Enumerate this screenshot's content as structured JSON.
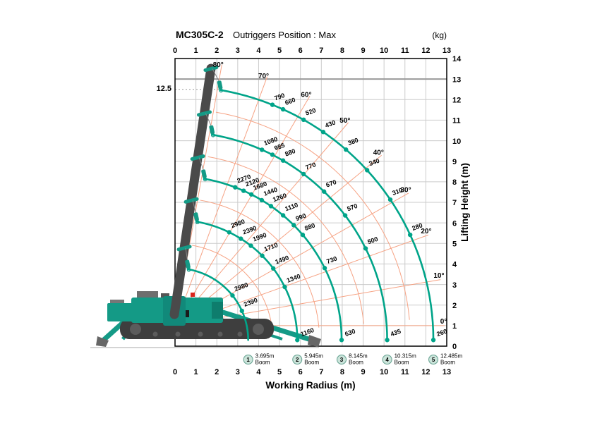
{
  "header": {
    "model": "MC305C-2",
    "subtitle": "Outriggers Position : Max",
    "unit": "(kg)"
  },
  "axes": {
    "x_label": "Working Radius (m)",
    "y_label": "Lifting Height (m)",
    "x_ticks": [
      0,
      1,
      2,
      3,
      4,
      5,
      6,
      7,
      8,
      9,
      10,
      11,
      12,
      13
    ],
    "y_ticks": [
      0,
      1,
      2,
      3,
      4,
      5,
      6,
      7,
      8,
      9,
      10,
      11,
      12,
      13,
      14
    ],
    "x_max": 13,
    "y_max": 14,
    "heavy_gridline_height": 13
  },
  "height_marker": {
    "label": "12.5",
    "height_m": 12.5,
    "extent_m": 2.1
  },
  "chart_data": {
    "type": "line",
    "title": "MC305C-2 Outriggers Position : Max",
    "units": "kg",
    "xlabel": "Working Radius (m)",
    "ylabel": "Lifting Height (m)",
    "xlim": [
      0,
      13
    ],
    "ylim": [
      0,
      14
    ],
    "grid": true,
    "angle_origin": {
      "radius_m": 0,
      "height_m": 1.0
    },
    "arc_center_height_m": 0.3,
    "angle_lines_deg": [
      0,
      10,
      20,
      30,
      40,
      50,
      60,
      70,
      80
    ],
    "intermediate_arc_radii_m": [
      4.68,
      6.91,
      9.06,
      11.26
    ],
    "booms": [
      {
        "num": "1",
        "length_label": "3.695m",
        "sub_label": "Boom",
        "reach_m": 3.5,
        "points": [
          {
            "r": 2.75,
            "load": 2980
          },
          {
            "r": 3.2,
            "load": 2390
          }
        ],
        "end_load": null
      },
      {
        "num": "2",
        "length_label": "5.945m",
        "sub_label": "Boom",
        "reach_m": 5.85,
        "points": [
          {
            "r": 2.59,
            "load": 2980
          },
          {
            "r": 3.15,
            "load": 2390
          },
          {
            "r": 3.63,
            "load": 1990
          },
          {
            "r": 4.17,
            "load": 1710
          },
          {
            "r": 4.7,
            "load": 1490
          },
          {
            "r": 5.25,
            "load": 1340
          }
        ],
        "end_load": 1160
      },
      {
        "num": "3",
        "length_label": "8.145m",
        "sub_label": "Boom",
        "reach_m": 7.97,
        "points": [
          {
            "r": 2.88,
            "load": 2270
          },
          {
            "r": 3.28,
            "load": 2120
          },
          {
            "r": 3.65,
            "load": 1680
          },
          {
            "r": 4.15,
            "load": 1440
          },
          {
            "r": 4.59,
            "load": 1260
          },
          {
            "r": 5.17,
            "load": 1110
          },
          {
            "r": 5.68,
            "load": 990
          },
          {
            "r": 6.11,
            "load": 880
          },
          {
            "r": 7.16,
            "load": 730
          }
        ],
        "end_load": 630
      },
      {
        "num": "4",
        "length_label": "10.315m",
        "sub_label": "Boom",
        "reach_m": 10.15,
        "points": [
          {
            "r": 4.16,
            "load": 1080
          },
          {
            "r": 4.66,
            "load": 985
          },
          {
            "r": 5.17,
            "load": 880
          },
          {
            "r": 6.15,
            "load": 770
          },
          {
            "r": 7.13,
            "load": 670
          },
          {
            "r": 8.14,
            "load": 570
          },
          {
            "r": 9.12,
            "load": 500
          }
        ],
        "end_load": 435
      },
      {
        "num": "5",
        "length_label": "12.485m",
        "sub_label": "Boom",
        "reach_m": 12.36,
        "points": [
          {
            "r": 4.66,
            "load": 790
          },
          {
            "r": 5.17,
            "load": 660
          },
          {
            "r": 6.15,
            "load": 520
          },
          {
            "r": 7.09,
            "load": 430
          },
          {
            "r": 8.18,
            "load": 380
          },
          {
            "r": 9.19,
            "load": 340
          },
          {
            "r": 10.3,
            "load": 310
          },
          {
            "r": 11.25,
            "load": 280
          }
        ],
        "end_load": 260
      }
    ]
  },
  "colors": {
    "curve_green": "#00A489",
    "orange_line": "#F6A283",
    "orange_label": "#EC5B24",
    "grid": "#CBCBCB",
    "grid_heavy": "#9A9A9A",
    "border": "#000000",
    "crane_teal": "#149A86",
    "crane_dark": "#4A4A4A",
    "legend_circle_fill": "#CBE4DA",
    "legend_circle_stroke": "#62A08F",
    "red_light": "#D9251D"
  }
}
